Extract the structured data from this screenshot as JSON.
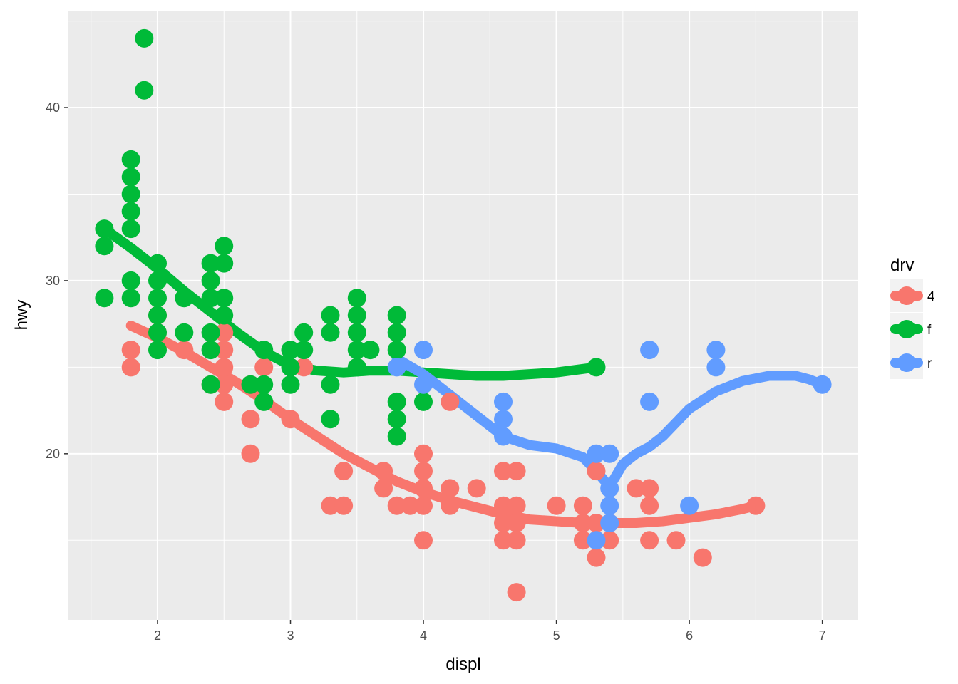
{
  "chart_data": {
    "type": "scatter",
    "title": "",
    "xlabel": "displ",
    "ylabel": "hwy",
    "xlim": [
      1.33,
      7.27
    ],
    "ylim": [
      10.4,
      45.6
    ],
    "x_ticks": [
      2,
      3,
      4,
      5,
      6,
      7
    ],
    "y_ticks": [
      20,
      30,
      40
    ],
    "grid": true,
    "legend": {
      "title": "drv",
      "position": "right"
    },
    "series": [
      {
        "name": "4",
        "color": "#F8766D",
        "points": [
          [
            1.8,
            26
          ],
          [
            1.8,
            25
          ],
          [
            2.0,
            28
          ],
          [
            2.0,
            27
          ],
          [
            2.2,
            26
          ],
          [
            2.4,
            24
          ],
          [
            2.5,
            27
          ],
          [
            2.5,
            26
          ],
          [
            2.5,
            25
          ],
          [
            2.5,
            24
          ],
          [
            2.5,
            23
          ],
          [
            2.7,
            24
          ],
          [
            2.7,
            22
          ],
          [
            2.7,
            20
          ],
          [
            2.8,
            25
          ],
          [
            3.0,
            22
          ],
          [
            3.1,
            25
          ],
          [
            3.3,
            17
          ],
          [
            3.4,
            17
          ],
          [
            3.4,
            19
          ],
          [
            3.7,
            19
          ],
          [
            3.7,
            18
          ],
          [
            3.8,
            17
          ],
          [
            3.9,
            17
          ],
          [
            4.0,
            20
          ],
          [
            4.0,
            19
          ],
          [
            4.0,
            18
          ],
          [
            4.0,
            17
          ],
          [
            4.0,
            15
          ],
          [
            4.2,
            23
          ],
          [
            4.2,
            18
          ],
          [
            4.2,
            17
          ],
          [
            4.4,
            18
          ],
          [
            4.6,
            19
          ],
          [
            4.6,
            17
          ],
          [
            4.6,
            16
          ],
          [
            4.6,
            15
          ],
          [
            4.7,
            19
          ],
          [
            4.7,
            17
          ],
          [
            4.7,
            16
          ],
          [
            4.7,
            15
          ],
          [
            4.7,
            12
          ],
          [
            5.0,
            17
          ],
          [
            5.2,
            17
          ],
          [
            5.2,
            16
          ],
          [
            5.2,
            15
          ],
          [
            5.3,
            19
          ],
          [
            5.3,
            16
          ],
          [
            5.3,
            15
          ],
          [
            5.3,
            14
          ],
          [
            5.4,
            16
          ],
          [
            5.4,
            15
          ],
          [
            5.7,
            18
          ],
          [
            5.7,
            17
          ],
          [
            5.7,
            15
          ],
          [
            5.9,
            15
          ],
          [
            5.6,
            18
          ],
          [
            6.1,
            14
          ],
          [
            6.5,
            17
          ]
        ],
        "smooth": [
          [
            1.8,
            27.4
          ],
          [
            2.0,
            26.7
          ],
          [
            2.2,
            25.9
          ],
          [
            2.4,
            25.0
          ],
          [
            2.6,
            24.1
          ],
          [
            2.8,
            23.1
          ],
          [
            3.0,
            22.0
          ],
          [
            3.2,
            21.0
          ],
          [
            3.4,
            20.0
          ],
          [
            3.6,
            19.2
          ],
          [
            3.8,
            18.4
          ],
          [
            4.0,
            17.8
          ],
          [
            4.2,
            17.3
          ],
          [
            4.4,
            16.9
          ],
          [
            4.6,
            16.5
          ],
          [
            4.8,
            16.2
          ],
          [
            5.0,
            16.1
          ],
          [
            5.2,
            16.0
          ],
          [
            5.4,
            16.0
          ],
          [
            5.6,
            16.0
          ],
          [
            5.8,
            16.1
          ],
          [
            6.0,
            16.3
          ],
          [
            6.2,
            16.5
          ],
          [
            6.4,
            16.8
          ],
          [
            6.5,
            17.0
          ]
        ]
      },
      {
        "name": "f",
        "color": "#00BA38",
        "points": [
          [
            1.6,
            33
          ],
          [
            1.6,
            32
          ],
          [
            1.6,
            29
          ],
          [
            1.8,
            37
          ],
          [
            1.8,
            36
          ],
          [
            1.8,
            35
          ],
          [
            1.8,
            34
          ],
          [
            1.8,
            33
          ],
          [
            1.8,
            30
          ],
          [
            1.8,
            29
          ],
          [
            1.9,
            44
          ],
          [
            1.9,
            41
          ],
          [
            2.0,
            31
          ],
          [
            2.0,
            30
          ],
          [
            2.0,
            29
          ],
          [
            2.0,
            28
          ],
          [
            2.0,
            27
          ],
          [
            2.0,
            26
          ],
          [
            2.2,
            29
          ],
          [
            2.2,
            27
          ],
          [
            2.4,
            31
          ],
          [
            2.4,
            30
          ],
          [
            2.4,
            29
          ],
          [
            2.4,
            27
          ],
          [
            2.4,
            26
          ],
          [
            2.4,
            24
          ],
          [
            2.5,
            32
          ],
          [
            2.5,
            31
          ],
          [
            2.5,
            29
          ],
          [
            2.5,
            28
          ],
          [
            2.7,
            24
          ],
          [
            2.8,
            26
          ],
          [
            2.8,
            24
          ],
          [
            2.8,
            23
          ],
          [
            3.0,
            26
          ],
          [
            3.0,
            25
          ],
          [
            3.0,
            24
          ],
          [
            3.1,
            27
          ],
          [
            3.1,
            26
          ],
          [
            3.3,
            28
          ],
          [
            3.3,
            27
          ],
          [
            3.3,
            24
          ],
          [
            3.3,
            22
          ],
          [
            3.5,
            29
          ],
          [
            3.5,
            28
          ],
          [
            3.5,
            27
          ],
          [
            3.5,
            26
          ],
          [
            3.5,
            25
          ],
          [
            3.6,
            26
          ],
          [
            3.8,
            28
          ],
          [
            3.8,
            27
          ],
          [
            3.8,
            26
          ],
          [
            3.8,
            23
          ],
          [
            3.8,
            22
          ],
          [
            3.8,
            21
          ],
          [
            4.0,
            23
          ],
          [
            5.3,
            25
          ]
        ],
        "smooth": [
          [
            1.6,
            33.0
          ],
          [
            1.8,
            31.9
          ],
          [
            2.0,
            30.7
          ],
          [
            2.2,
            29.4
          ],
          [
            2.4,
            28.2
          ],
          [
            2.6,
            27.0
          ],
          [
            2.8,
            25.9
          ],
          [
            3.0,
            25.1
          ],
          [
            3.2,
            24.8
          ],
          [
            3.4,
            24.7
          ],
          [
            3.6,
            24.8
          ],
          [
            3.8,
            24.8
          ],
          [
            4.0,
            24.7
          ],
          [
            4.2,
            24.6
          ],
          [
            4.4,
            24.5
          ],
          [
            4.6,
            24.5
          ],
          [
            4.8,
            24.6
          ],
          [
            5.0,
            24.7
          ],
          [
            5.2,
            24.9
          ],
          [
            5.3,
            25.0
          ]
        ]
      },
      {
        "name": "r",
        "color": "#619CFF",
        "points": [
          [
            3.8,
            25
          ],
          [
            4.0,
            26
          ],
          [
            4.0,
            24
          ],
          [
            4.6,
            23
          ],
          [
            4.6,
            22
          ],
          [
            4.6,
            21
          ],
          [
            5.3,
            20
          ],
          [
            5.4,
            20
          ],
          [
            5.4,
            18
          ],
          [
            5.4,
            17
          ],
          [
            5.4,
            16
          ],
          [
            5.3,
            15
          ],
          [
            5.7,
            26
          ],
          [
            5.7,
            23
          ],
          [
            6.0,
            17
          ],
          [
            6.2,
            26
          ],
          [
            6.2,
            25
          ],
          [
            7.0,
            24
          ]
        ],
        "smooth": [
          [
            3.8,
            25.5
          ],
          [
            4.0,
            24.6
          ],
          [
            4.2,
            23.4
          ],
          [
            4.4,
            22.2
          ],
          [
            4.6,
            21.0
          ],
          [
            4.8,
            20.5
          ],
          [
            5.0,
            20.3
          ],
          [
            5.2,
            19.8
          ],
          [
            5.3,
            19.0
          ],
          [
            5.4,
            18.1
          ],
          [
            5.5,
            19.4
          ],
          [
            5.6,
            20.0
          ],
          [
            5.7,
            20.4
          ],
          [
            5.8,
            21.0
          ],
          [
            6.0,
            22.6
          ],
          [
            6.2,
            23.6
          ],
          [
            6.4,
            24.2
          ],
          [
            6.6,
            24.5
          ],
          [
            6.8,
            24.5
          ],
          [
            6.9,
            24.3
          ],
          [
            7.0,
            24.0
          ]
        ]
      }
    ]
  }
}
